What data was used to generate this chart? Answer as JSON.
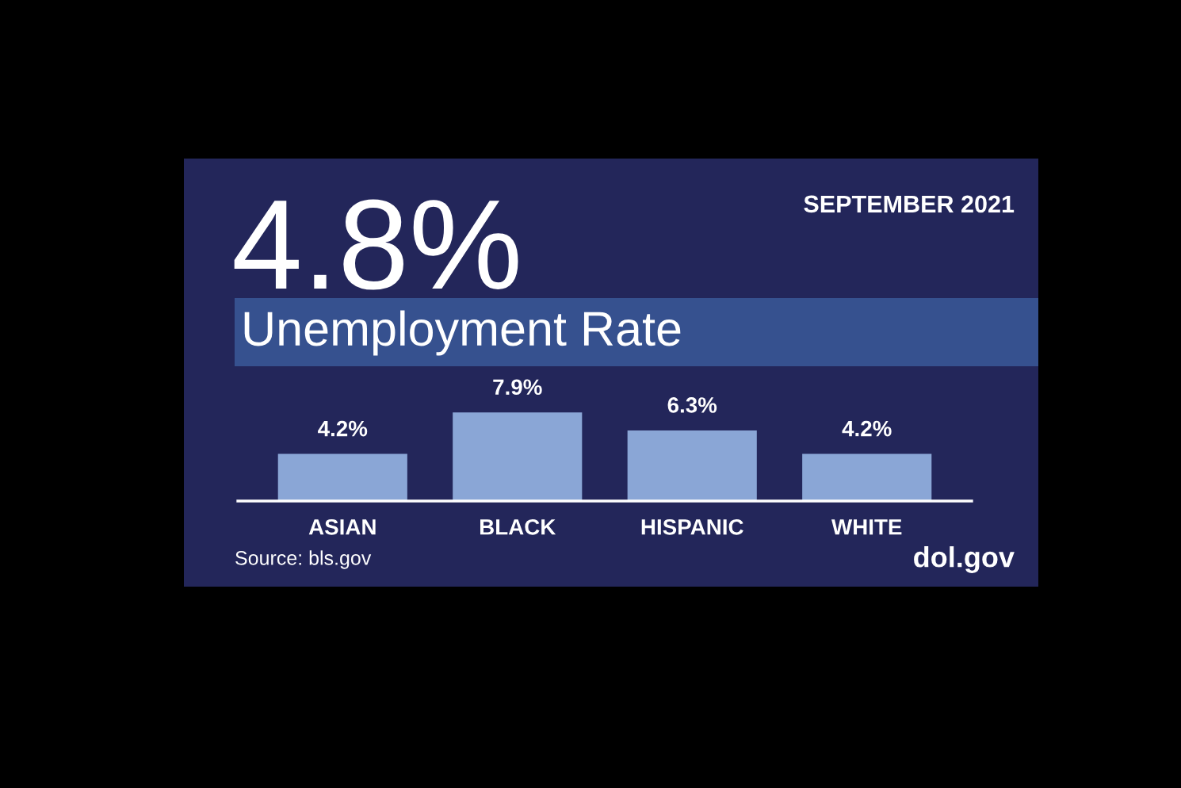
{
  "chart_data": {
    "type": "bar",
    "title": "4.8%",
    "subtitle": "Unemployment Rate",
    "annotations": [
      "SEPTEMBER 2021",
      "Source: bls.gov",
      "dol.gov"
    ],
    "categories": [
      "ASIAN",
      "BLACK",
      "HISPANIC",
      "WHITE"
    ],
    "values": [
      4.2,
      7.9,
      6.3,
      4.2
    ],
    "value_labels": [
      "4.2%",
      "7.9%",
      "6.3%",
      "4.2%"
    ],
    "color": "#8aa6d6"
  }
}
